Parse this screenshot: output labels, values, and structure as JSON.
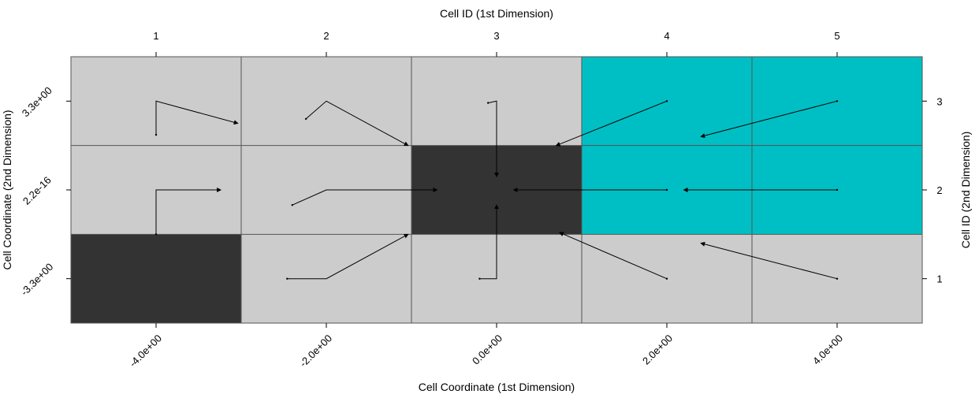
{
  "chart_data": {
    "type": "heatmap",
    "title": "",
    "top_xlabel": "Cell ID (1st Dimension)",
    "bottom_xlabel": "Cell Coordinate (1st Dimension)",
    "left_ylabel": "Cell Coordinate (2nd Dimension)",
    "right_ylabel": "Cell ID (2nd Dimension)",
    "top_ticks": [
      "1",
      "2",
      "3",
      "4",
      "5"
    ],
    "right_ticks": [
      "1",
      "2",
      "3"
    ],
    "bottom_ticks": [
      "-4.0e+00",
      "-2.0e+00",
      "0.0e+00",
      "2.0e+00",
      "4.0e+00"
    ],
    "left_ticks": [
      "-3.3e+00",
      "2.2e-16",
      "3.3e+00"
    ],
    "n_cols": 5,
    "n_rows": 3,
    "colors": {
      "light": "#cccccc",
      "dark": "#333333",
      "cyan": "#00bfc4",
      "grid": "#555555",
      "arrow": "#000000"
    },
    "cells": [
      {
        "col": 1,
        "row": 3,
        "fill": "light"
      },
      {
        "col": 2,
        "row": 3,
        "fill": "light"
      },
      {
        "col": 3,
        "row": 3,
        "fill": "light"
      },
      {
        "col": 4,
        "row": 3,
        "fill": "cyan"
      },
      {
        "col": 5,
        "row": 3,
        "fill": "cyan"
      },
      {
        "col": 1,
        "row": 2,
        "fill": "light"
      },
      {
        "col": 2,
        "row": 2,
        "fill": "light"
      },
      {
        "col": 3,
        "row": 2,
        "fill": "dark"
      },
      {
        "col": 4,
        "row": 2,
        "fill": "cyan"
      },
      {
        "col": 5,
        "row": 2,
        "fill": "cyan"
      },
      {
        "col": 1,
        "row": 1,
        "fill": "dark"
      },
      {
        "col": 2,
        "row": 1,
        "fill": "light"
      },
      {
        "col": 3,
        "row": 1,
        "fill": "light"
      },
      {
        "col": 4,
        "row": 1,
        "fill": "light"
      },
      {
        "col": 5,
        "row": 1,
        "fill": "light"
      }
    ],
    "paths": [
      {
        "id": "c1r3",
        "points": [
          [
            1,
            2.62
          ],
          [
            1,
            3
          ],
          [
            1.48,
            2.75
          ]
        ]
      },
      {
        "id": "c2r3",
        "points": [
          [
            1.88,
            2.8
          ],
          [
            2,
            3
          ],
          [
            2.48,
            2.5
          ]
        ]
      },
      {
        "id": "c3r3",
        "points": [
          [
            2.95,
            2.98
          ],
          [
            3,
            3
          ],
          [
            3,
            2.15
          ]
        ]
      },
      {
        "id": "c4r3",
        "points": [
          [
            4,
            3
          ],
          [
            3.35,
            2.5
          ]
        ]
      },
      {
        "id": "c5r3",
        "points": [
          [
            5,
            3
          ],
          [
            4.2,
            2.6
          ]
        ]
      },
      {
        "id": "c1r2",
        "points": [
          [
            1,
            1.5
          ],
          [
            1,
            2
          ],
          [
            1.38,
            2
          ]
        ]
      },
      {
        "id": "c2r2",
        "points": [
          [
            1.8,
            1.83
          ],
          [
            2,
            2
          ],
          [
            2.65,
            2
          ]
        ]
      },
      {
        "id": "c4r2",
        "points": [
          [
            4,
            2
          ],
          [
            3.1,
            2
          ]
        ]
      },
      {
        "id": "c5r2",
        "points": [
          [
            5,
            2
          ],
          [
            4.1,
            2
          ]
        ]
      },
      {
        "id": "c2r1",
        "points": [
          [
            1.77,
            1
          ],
          [
            2,
            1
          ],
          [
            2.48,
            1.5
          ]
        ]
      },
      {
        "id": "c3r1",
        "points": [
          [
            2.9,
            1
          ],
          [
            3,
            1
          ],
          [
            3,
            1.83
          ]
        ]
      },
      {
        "id": "c4r1",
        "points": [
          [
            4,
            1
          ],
          [
            3.37,
            1.52
          ]
        ]
      },
      {
        "id": "c5r1",
        "points": [
          [
            5,
            1
          ],
          [
            4.2,
            1.4
          ]
        ]
      }
    ]
  }
}
